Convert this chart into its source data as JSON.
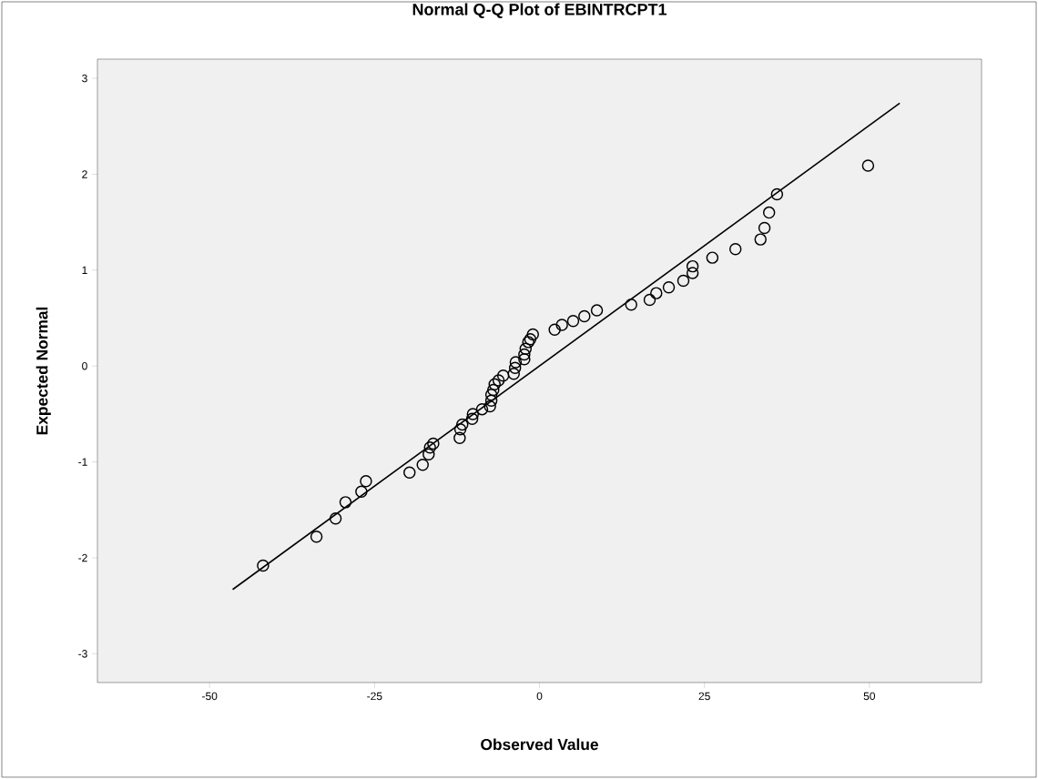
{
  "chart_data": {
    "type": "scatter",
    "title": "Normal Q-Q Plot of EBINTRCPT1",
    "xlabel": "Observed Value",
    "ylabel": "Expected Normal",
    "xlim": [
      -67,
      67
    ],
    "ylim": [
      -3.3,
      3.2
    ],
    "xticks": [
      -50,
      -25,
      0,
      25,
      50
    ],
    "yticks": [
      -3,
      -2,
      -1,
      0,
      1,
      2,
      3
    ],
    "series": [
      {
        "type": "scatter",
        "color": "#000000",
        "marker": "circle",
        "x": [
          -41.9,
          -33.8,
          -30.9,
          -29.4,
          -27.0,
          -26.3,
          -19.7,
          -17.7,
          -16.8,
          -16.6,
          -16.1,
          -12.1,
          -12.0,
          -11.7,
          -10.2,
          -10.1,
          -8.7,
          -7.5,
          -7.3,
          -7.3,
          -7.0,
          -6.8,
          -6.2,
          -5.5,
          -3.9,
          -3.7,
          -3.6,
          -2.3,
          -2.3,
          -2.1,
          -1.7,
          -1.4,
          -1.0,
          2.3,
          3.4,
          5.1,
          6.8,
          8.7,
          13.9,
          16.7,
          17.7,
          19.6,
          21.8,
          23.2,
          23.2,
          26.2,
          29.7,
          33.5,
          34.1,
          34.8,
          36.0,
          49.8
        ],
        "values": [
          -2.08,
          -1.78,
          -1.59,
          -1.42,
          -1.31,
          -1.2,
          -1.11,
          -1.03,
          -0.92,
          -0.85,
          -0.81,
          -0.75,
          -0.66,
          -0.61,
          -0.55,
          -0.5,
          -0.45,
          -0.42,
          -0.36,
          -0.3,
          -0.25,
          -0.19,
          -0.15,
          -0.1,
          -0.08,
          -0.02,
          0.04,
          0.07,
          0.12,
          0.18,
          0.25,
          0.28,
          0.33,
          0.38,
          0.43,
          0.47,
          0.52,
          0.58,
          0.64,
          0.69,
          0.76,
          0.82,
          0.89,
          0.97,
          1.04,
          1.13,
          1.22,
          1.32,
          1.44,
          1.6,
          1.79,
          2.09
        ]
      },
      {
        "type": "line",
        "color": "#000000",
        "marker": "none",
        "line_style": "solid",
        "x": [
          -46.5,
          54.6
        ],
        "values": [
          -2.33,
          2.74
        ]
      }
    ]
  }
}
